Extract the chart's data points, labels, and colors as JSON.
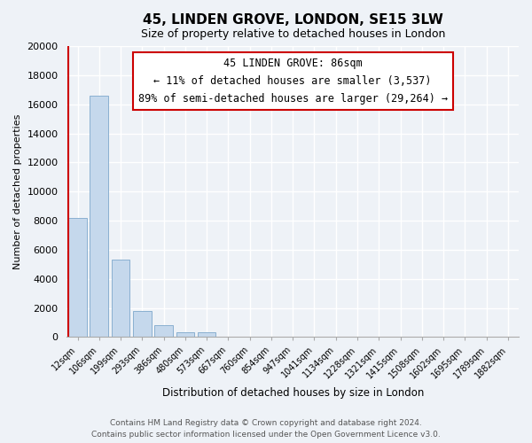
{
  "title": "45, LINDEN GROVE, LONDON, SE15 3LW",
  "subtitle": "Size of property relative to detached houses in London",
  "xlabel": "Distribution of detached houses by size in London",
  "ylabel": "Number of detached properties",
  "bar_labels": [
    "12sqm",
    "106sqm",
    "199sqm",
    "293sqm",
    "386sqm",
    "480sqm",
    "573sqm",
    "667sqm",
    "760sqm",
    "854sqm",
    "947sqm",
    "1041sqm",
    "1134sqm",
    "1228sqm",
    "1321sqm",
    "1415sqm",
    "1508sqm",
    "1602sqm",
    "1695sqm",
    "1789sqm",
    "1882sqm"
  ],
  "bar_values": [
    8200,
    16600,
    5300,
    1800,
    800,
    300,
    300,
    0,
    0,
    0,
    0,
    0,
    0,
    0,
    0,
    0,
    0,
    0,
    0,
    0,
    0
  ],
  "bar_color": "#c5d8ec",
  "bar_edge_color": "#8ab0d0",
  "highlight_line_color": "#cc0000",
  "ylim": [
    0,
    20000
  ],
  "yticks": [
    0,
    2000,
    4000,
    6000,
    8000,
    10000,
    12000,
    14000,
    16000,
    18000,
    20000
  ],
  "annotation_title": "45 LINDEN GROVE: 86sqm",
  "annotation_line1": "← 11% of detached houses are smaller (3,537)",
  "annotation_line2": "89% of semi-detached houses are larger (29,264) →",
  "annotation_box_color": "#ffffff",
  "annotation_box_edge": "#cc0000",
  "footer_line1": "Contains HM Land Registry data © Crown copyright and database right 2024.",
  "footer_line2": "Contains public sector information licensed under the Open Government Licence v3.0.",
  "background_color": "#eef2f7",
  "plot_background": "#eef2f7",
  "grid_color": "#ffffff",
  "figsize": [
    6.0,
    5.0
  ],
  "dpi": 100
}
